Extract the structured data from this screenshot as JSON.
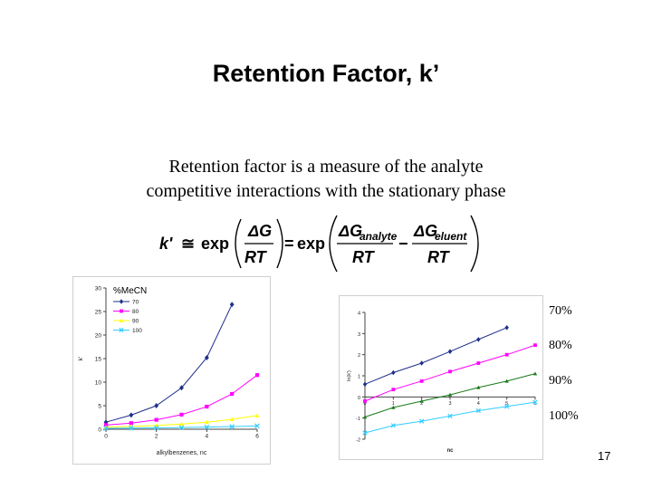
{
  "slide": {
    "title": "Retention Factor, k’",
    "subtitle_line1": "Retention factor is a measure of the analyte",
    "subtitle_line2": "competitive interactions with the stationary phase",
    "page_number": "17"
  },
  "formula": {
    "lhs": "k'",
    "approx": "≅",
    "exp": "exp",
    "equals": "=",
    "delta_g": "ΔG",
    "rt": "RT",
    "sub_analyte": "analyte",
    "sub_eluent": "eluent",
    "minus": "−"
  },
  "side_labels": [
    "70%",
    "80%",
    "90%",
    "100%"
  ],
  "colors": {
    "s70": "#1f2f8a",
    "s80": "#ff00ff",
    "s90": "#ffff00",
    "s100": "#33ccff",
    "green": "#1a7a1a",
    "axis": "#444444"
  },
  "chart_data": [
    {
      "type": "line",
      "title": "",
      "annotation": "%MeCN",
      "xlabel": "alkylbenzenes, nc",
      "ylabel": "k'",
      "xlim": [
        0,
        6
      ],
      "ylim": [
        0,
        30
      ],
      "xticks": [
        0,
        2,
        4,
        6
      ],
      "yticks": [
        0,
        5,
        10,
        15,
        20,
        25,
        30
      ],
      "x": [
        0,
        1,
        2,
        3,
        4,
        5,
        6
      ],
      "legend": "top-left",
      "series": [
        {
          "name": "70",
          "marker": "diamond",
          "color": "#1f2f8a",
          "x": [
            0,
            1,
            2,
            3,
            4,
            5
          ],
          "values": [
            1.5,
            3.0,
            5.0,
            8.8,
            15.2,
            26.5
          ]
        },
        {
          "name": "80",
          "marker": "square",
          "color": "#ff00ff",
          "x": [
            0,
            1,
            2,
            3,
            4,
            5,
            6
          ],
          "values": [
            0.9,
            1.3,
            2.0,
            3.1,
            4.8,
            7.5,
            11.5
          ]
        },
        {
          "name": "90",
          "marker": "triangle",
          "color": "#ffff00",
          "x": [
            0,
            1,
            2,
            3,
            4,
            5,
            6
          ],
          "values": [
            0.4,
            0.6,
            0.8,
            1.1,
            1.5,
            2.1,
            2.9
          ]
        },
        {
          "name": "100",
          "marker": "x",
          "color": "#33ccff",
          "x": [
            0,
            1,
            2,
            3,
            4,
            5,
            6
          ],
          "values": [
            0.2,
            0.25,
            0.3,
            0.35,
            0.45,
            0.55,
            0.7
          ]
        }
      ]
    },
    {
      "type": "line",
      "title": "",
      "xlabel": "nc",
      "ylabel": "ln(k')",
      "xlim": [
        0,
        6
      ],
      "ylim": [
        -2,
        4
      ],
      "xticks": [
        0,
        1,
        2,
        3,
        4,
        5,
        6
      ],
      "yticks": [
        -2,
        -1,
        0,
        1,
        2,
        3,
        4
      ],
      "x": [
        0,
        1,
        2,
        3,
        4,
        5,
        6
      ],
      "series": [
        {
          "name": "70%",
          "marker": "diamond",
          "color": "#1f2f8a",
          "x": [
            0,
            1,
            2,
            3,
            4,
            5
          ],
          "values": [
            0.6,
            1.15,
            1.6,
            2.15,
            2.72,
            3.28
          ]
        },
        {
          "name": "80%",
          "marker": "square",
          "color": "#ff00ff",
          "x": [
            0,
            1,
            2,
            3,
            4,
            5,
            6
          ],
          "values": [
            -0.2,
            0.35,
            0.75,
            1.2,
            1.6,
            2.0,
            2.45
          ]
        },
        {
          "name": "90%",
          "marker": "triangle",
          "color": "#1a7a1a",
          "x": [
            0,
            1,
            2,
            3,
            4,
            5,
            6
          ],
          "values": [
            -0.95,
            -0.5,
            -0.2,
            0.1,
            0.45,
            0.75,
            1.1
          ]
        },
        {
          "name": "100%",
          "marker": "x",
          "color": "#33ccff",
          "x": [
            0,
            1,
            2,
            3,
            4,
            5,
            6
          ],
          "values": [
            -1.7,
            -1.35,
            -1.15,
            -0.9,
            -0.65,
            -0.45,
            -0.25
          ]
        }
      ]
    }
  ]
}
